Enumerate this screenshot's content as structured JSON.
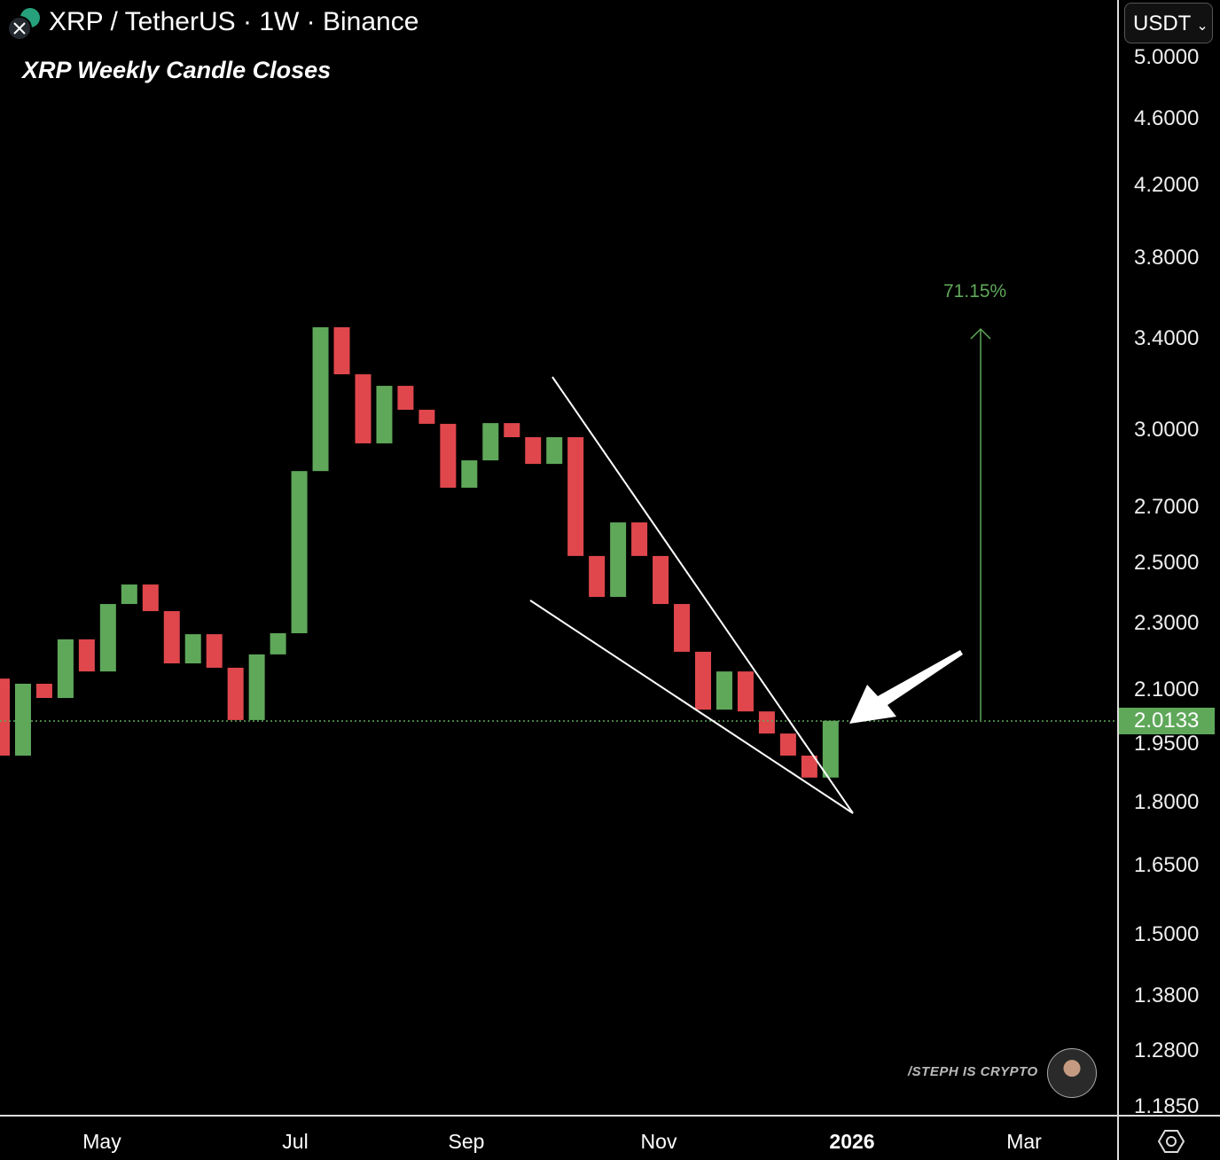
{
  "header": {
    "title": "XRP / TetherUS · 1W · Binance",
    "subtitle": "XRP Weekly Candle Closes",
    "currency": "USDT"
  },
  "watermark": "/STEPH IS CRYPTO",
  "colors": {
    "up": "#5fa85a",
    "down": "#e0474c",
    "background": "#000000",
    "trendline": "#ffffff"
  },
  "chart_data": {
    "type": "candlestick",
    "scale": "log",
    "ylim": [
      1.185,
      5.0
    ],
    "y_ticks": [
      "5.0000",
      "4.6000",
      "4.2000",
      "3.8000",
      "3.4000",
      "3.0000",
      "2.7000",
      "2.5000",
      "2.3000",
      "2.1000",
      "1.9500",
      "1.8000",
      "1.6500",
      "1.5000",
      "1.3800",
      "1.2800",
      "1.1850"
    ],
    "x_ticks": [
      "May",
      "Jul",
      "Sep",
      "Nov",
      "2026",
      "Mar"
    ],
    "last_price": "2.0133",
    "measure_label": "71.15%",
    "candles": [
      [
        2.133,
        1.919
      ],
      [
        1.919,
        2.118
      ],
      [
        2.118,
        2.077
      ],
      [
        2.077,
        2.251
      ],
      [
        2.251,
        2.154
      ],
      [
        2.154,
        2.363
      ],
      [
        2.363,
        2.427
      ],
      [
        2.427,
        2.34
      ],
      [
        2.34,
        2.178
      ],
      [
        2.178,
        2.267
      ],
      [
        2.267,
        2.165
      ],
      [
        2.165,
        2.015
      ],
      [
        2.015,
        2.205
      ],
      [
        2.205,
        2.27
      ],
      [
        2.27,
        2.836
      ],
      [
        2.836,
        3.455
      ],
      [
        3.455,
        3.239
      ],
      [
        3.239,
        2.946
      ],
      [
        2.946,
        3.188
      ],
      [
        3.188,
        3.085
      ],
      [
        3.085,
        3.026
      ],
      [
        3.026,
        2.772
      ],
      [
        2.772,
        2.878
      ],
      [
        2.878,
        3.029
      ],
      [
        3.029,
        2.971
      ],
      [
        2.971,
        2.864
      ],
      [
        2.864,
        2.971
      ],
      [
        2.971,
        2.524
      ],
      [
        2.524,
        2.386
      ],
      [
        2.386,
        2.643
      ],
      [
        2.643,
        2.524
      ],
      [
        2.524,
        2.363
      ],
      [
        2.363,
        2.213
      ],
      [
        2.213,
        2.044
      ],
      [
        2.044,
        2.154
      ],
      [
        2.154,
        2.039
      ],
      [
        2.039,
        1.978
      ],
      [
        1.978,
        1.919
      ],
      [
        1.919,
        1.862
      ],
      [
        1.862,
        2.013
      ]
    ]
  }
}
